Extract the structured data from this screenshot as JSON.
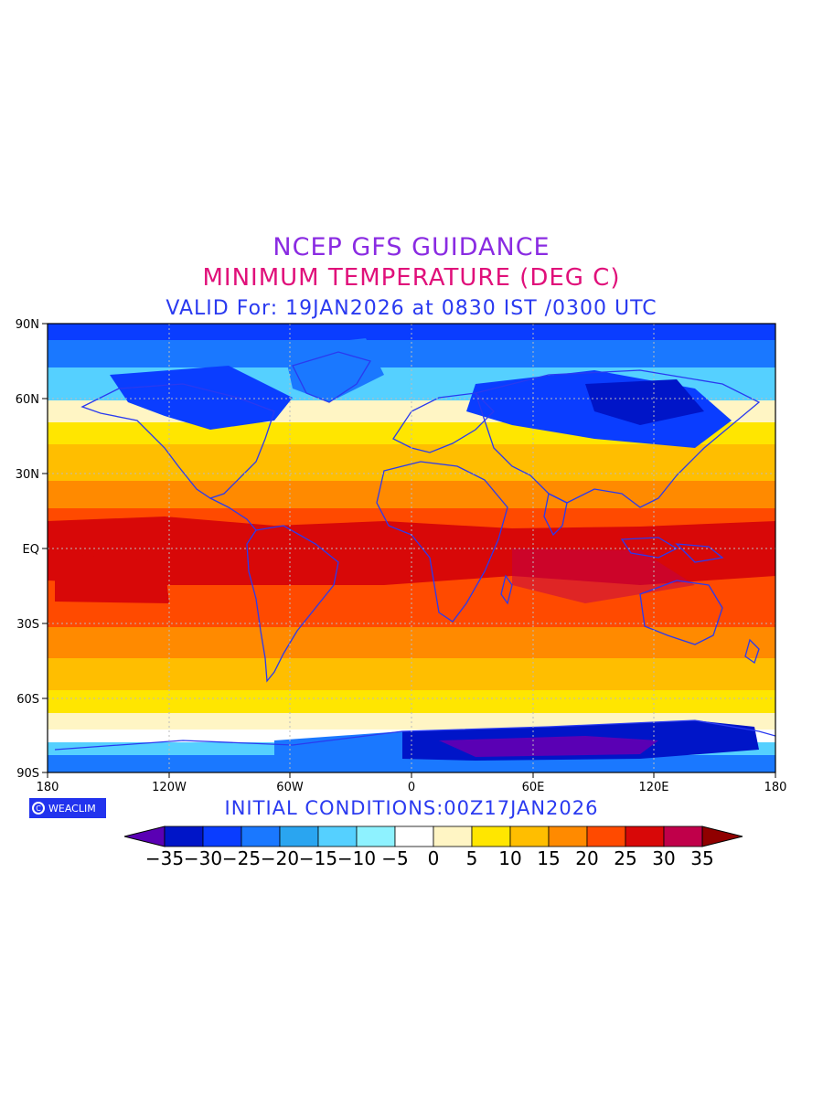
{
  "titles": {
    "line1": "NCEP GFS GUIDANCE",
    "line2": "MINIMUM TEMPERATURE (DEG C)",
    "line3": "VALID For: 19JAN2026 at 0830 IST /0300 UTC"
  },
  "axes": {
    "y_labels": [
      "90N",
      "60N",
      "30N",
      "EQ",
      "30S",
      "60S",
      "90S"
    ],
    "x_labels": [
      "180",
      "120W",
      "60W",
      "0",
      "60E",
      "120E",
      "180"
    ],
    "lon_range": [
      -180,
      180
    ],
    "lat_range": [
      -90,
      90
    ],
    "grid": true
  },
  "footer": {
    "initial_conditions": "INITIAL CONDITIONS:00Z17JAN2026",
    "logo_text": "WEACLIM",
    "logo_icon": "copyright-circle-icon"
  },
  "colorbar": {
    "ticks": [
      "−35",
      "−30",
      "−25",
      "−20",
      "−15",
      "−10",
      "−5",
      "0",
      "5",
      "10",
      "15",
      "20",
      "25",
      "30",
      "35"
    ],
    "colors": [
      "#5a00b4",
      "#0015c8",
      "#0a3dff",
      "#1a78ff",
      "#2aa5f0",
      "#55d0ff",
      "#8ef2ff",
      "#ffffff",
      "#fff5c4",
      "#ffe600",
      "#ffbe00",
      "#ff8a00",
      "#ff4a00",
      "#d80808",
      "#c0004a",
      "#900000"
    ],
    "extend": "both"
  }
}
